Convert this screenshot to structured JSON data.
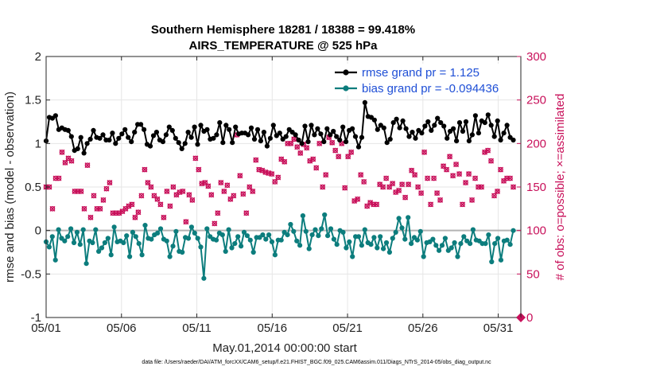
{
  "chart_data": {
    "type": "line",
    "title": "Southern Hemisphere 18281 / 18388 = 99.418%",
    "subtitle": "AIRS_TEMPERATURE @ 525 hPa",
    "xlabel": "May.01,2014 00:00:00 start",
    "ylabel": "rmse and bias (model - observation)",
    "ylabel_right": "# of obs: o=possible; ×=assimilated",
    "xlim": [
      0,
      31.5
    ],
    "ylim": [
      -1,
      2
    ],
    "ylim_right": [
      0,
      300
    ],
    "x_ticks": [
      0,
      5,
      10,
      15,
      20,
      25,
      30
    ],
    "x_tick_labels": [
      "05/01",
      "05/06",
      "05/11",
      "05/16",
      "05/21",
      "05/26",
      "05/31"
    ],
    "y_ticks": [
      -1,
      -0.5,
      0,
      0.5,
      1,
      1.5,
      2
    ],
    "y_tick_labels": [
      "-1",
      "-0.5",
      "0",
      "0.5",
      "1",
      "1.5",
      "2"
    ],
    "y_right_ticks": [
      0,
      50,
      100,
      150,
      200,
      250,
      300
    ],
    "y_right_tick_labels": [
      "0",
      "50",
      "100",
      "150",
      "200",
      "250",
      "300"
    ],
    "grid": true,
    "legend_position": "top-right",
    "series": [
      {
        "name": "rmse grand pr = 1.125",
        "color": "#000000",
        "values": [
          1.03,
          1.3,
          1.29,
          1.32,
          1.16,
          1.18,
          1.16,
          1.15,
          1.08,
          0.92,
          0.94,
          1.07,
          0.89,
          1.0,
          1.05,
          1.15,
          1.07,
          1.06,
          1.1,
          1.04,
          1.04,
          1.12,
          1.0,
          1.06,
          1.11,
          1.16,
          1.07,
          1.02,
          1.13,
          1.22,
          1.22,
          1.16,
          0.99,
          0.97,
          1.09,
          1.13,
          1.04,
          1.02,
          1.1,
          1.19,
          1.15,
          1.06,
          1.01,
          0.94,
          1.0,
          1.13,
          1.07,
          1.19,
          0.99,
          1.21,
          1.14,
          1.16,
          1.05,
          1.06,
          1.1,
          1.24,
          1.01,
          1.21,
          1.16,
          1.01,
          1.19,
          1.11,
          1.12,
          1.12,
          1.1,
          1.18,
          1.05,
          1.16,
          1.03,
          1.13,
          0.97,
          1.06,
          1.21,
          1.09,
          1.12,
          1.05,
          1.08,
          1.16,
          1.13,
          1.1,
          1.04,
          1.0,
          1.2,
          1.02,
          1.21,
          1.1,
          1.17,
          1.11,
          1.02,
          1.17,
          1.1,
          1.14,
          1.08,
          1.04,
          1.19,
          1.02,
          1.15,
          1.17,
          1.08,
          0.96,
          1.07,
          1.47,
          1.31,
          1.3,
          1.27,
          1.16,
          1.21,
          1.18,
          1.01,
          1.05,
          1.24,
          1.28,
          1.18,
          1.26,
          1.17,
          1.08,
          1.13,
          1.06,
          1.15,
          1.12,
          1.2,
          1.25,
          1.15,
          1.21,
          1.29,
          1.24,
          1.2,
          1.06,
          1.14,
          1.17,
          1.03,
          1.24,
          1.14,
          1.25,
          1.03,
          1.1,
          1.32,
          1.12,
          1.26,
          1.24,
          1.33,
          1.21,
          1.08,
          1.26,
          1.04,
          1.12,
          1.21,
          1.07,
          1.04
        ]
      },
      {
        "name": "bias grand pr = -0.094436",
        "color": "#0c7d7d",
        "values": [
          -0.13,
          -0.19,
          -0.07,
          -0.34,
          0.01,
          -0.09,
          -0.12,
          -0.07,
          0.02,
          -0.14,
          -0.02,
          -0.16,
          0.01,
          -0.38,
          -0.12,
          -0.14,
          0.01,
          -0.24,
          -0.2,
          -0.14,
          -0.09,
          -0.28,
          0.04,
          -0.13,
          -0.12,
          -0.14,
          -0.06,
          -0.3,
          -0.02,
          -0.07,
          -0.15,
          -0.28,
          0.06,
          -0.09,
          -0.1,
          -0.05,
          -0.03,
          0.02,
          -0.1,
          -0.12,
          -0.3,
          -0.18,
          -0.01,
          -0.24,
          -0.25,
          -0.08,
          -0.09,
          0.04,
          -0.03,
          -0.09,
          -0.19,
          -0.55,
          0.02,
          -0.07,
          -0.1,
          -0.11,
          -0.03,
          -0.05,
          -0.24,
          0.01,
          -0.2,
          -0.15,
          -0.07,
          -0.18,
          -0.02,
          -0.06,
          -0.11,
          -0.25,
          -0.08,
          -0.08,
          -0.05,
          -0.1,
          -0.05,
          -0.13,
          -0.28,
          -0.11,
          -0.11,
          -0.02,
          -0.05,
          0.07,
          -0.01,
          -0.12,
          -0.17,
          0.17,
          -0.01,
          -0.21,
          -0.05,
          0.01,
          -0.06,
          0.02,
          0.18,
          -0.06,
          0.02,
          -0.1,
          -0.16,
          0.0,
          -0.02,
          -0.2,
          -0.13,
          -0.3,
          -0.07,
          -0.07,
          -0.17,
          0.01,
          -0.14,
          -0.16,
          -0.08,
          -0.2,
          -0.07,
          -0.21,
          -0.14,
          -0.25,
          -0.09,
          -0.02,
          0.14,
          0.03,
          -0.1,
          0.15,
          -0.15,
          -0.08,
          -0.11,
          -0.01,
          -0.3,
          -0.14,
          -0.13,
          -0.1,
          -0.17,
          -0.23,
          -0.17,
          -0.09,
          -0.23,
          -0.2,
          -0.14,
          -0.3,
          -0.15,
          -0.07,
          -0.12,
          -0.15,
          0.01,
          -0.11,
          -0.12,
          -0.15,
          -0.15,
          -0.05,
          -0.36,
          -0.15,
          -0.09,
          -0.34,
          -0.12,
          -0.11,
          -0.16,
          0.0
        ]
      }
    ],
    "obs_counts": {
      "name": "observation counts (right axis)",
      "color": "#c8105a",
      "values": [
        150,
        150,
        125,
        160,
        160,
        190,
        178,
        183,
        180,
        145,
        145,
        145,
        125,
        175,
        115,
        140,
        125,
        125,
        135,
        148,
        155,
        120,
        120,
        120,
        122,
        125,
        128,
        130,
        115,
        121,
        140,
        170,
        155,
        150,
        140,
        136,
        130,
        115,
        145,
        128,
        150,
        141,
        144,
        145,
        110,
        141,
        135,
        183,
        170,
        154,
        155,
        151,
        141,
        108,
        120,
        155,
        145,
        152,
        136,
        140,
        210,
        163,
        142,
        120,
        150,
        145,
        181,
        170,
        169,
        167,
        166,
        165,
        156,
        161,
        182,
        179,
        200,
        200,
        205,
        196,
        189,
        199,
        195,
        180,
        182,
        172,
        200,
        150,
        164,
        207,
        201,
        192,
        185,
        200,
        149,
        185,
        190,
        134,
        136,
        164,
        156,
        128,
        132,
        130,
        130,
        153,
        150,
        160,
        150,
        154,
        144,
        146,
        153,
        138,
        153,
        169,
        164,
        150,
        143,
        190,
        160,
        130,
        160,
        143,
        135,
        174,
        170,
        185,
        163,
        176,
        165,
        130,
        155,
        165,
        135,
        160,
        150,
        150,
        190,
        192,
        180,
        140,
        145,
        170,
        157,
        160,
        160,
        150
      ]
    }
  },
  "footer": {
    "data_file": "data file: /Users/raeder/DAI/ATM_forcXX/CAM6_setup/f.e21.FHIST_BGC.f09_025.CAM6assim.011/Diags_NTrS_2014-05/obs_diag_output.nc"
  }
}
